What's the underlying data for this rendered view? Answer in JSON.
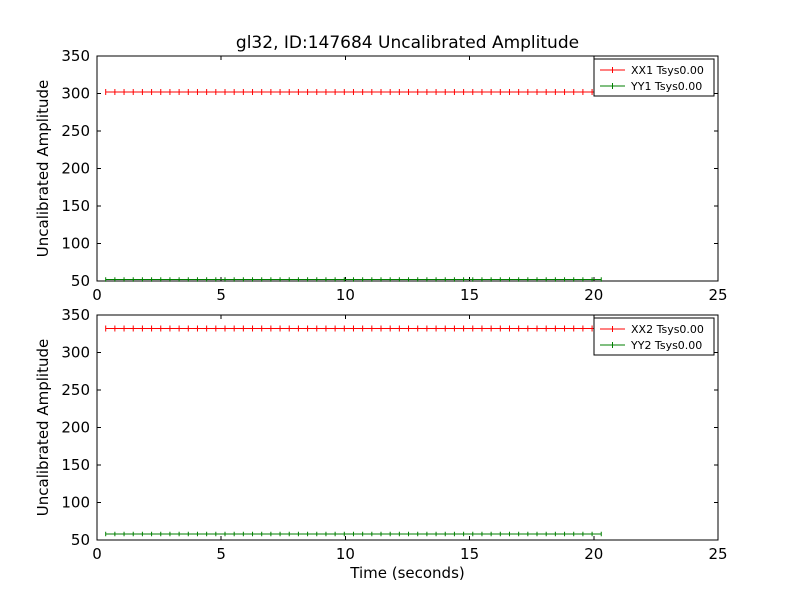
{
  "figure": {
    "background": "#ffffff",
    "title": "gl32, ID:147684 Uncalibrated Amplitude"
  },
  "chart_data": [
    {
      "type": "line",
      "subplot": "top",
      "xlabel": "",
      "ylabel": "Uncalibrated Amplitude",
      "xlim": [
        0,
        25
      ],
      "ylim": [
        50,
        350
      ],
      "xticks": [
        0,
        5,
        10,
        15,
        20,
        25
      ],
      "yticks": [
        50,
        100,
        150,
        200,
        250,
        300,
        350
      ],
      "grid": false,
      "legend_position": "upper right",
      "series": [
        {
          "name": "XX1 Tsys0.00",
          "color": "#ff0000",
          "style": "errorbar",
          "x_start": 0.35,
          "x_end": 20.3,
          "points": 55,
          "y_constant": 302,
          "y_error": 4
        },
        {
          "name": "YY1 Tsys0.00",
          "color": "#007f00",
          "style": "errorbar",
          "x_start": 0.35,
          "x_end": 20.3,
          "points": 55,
          "y_constant": 52,
          "y_error": 3
        }
      ]
    },
    {
      "type": "line",
      "subplot": "bottom",
      "xlabel": "Time (seconds)",
      "ylabel": "Uncalibrated Amplitude",
      "xlim": [
        0,
        25
      ],
      "ylim": [
        50,
        350
      ],
      "xticks": [
        0,
        5,
        10,
        15,
        20,
        25
      ],
      "yticks": [
        50,
        100,
        150,
        200,
        250,
        300,
        350
      ],
      "grid": false,
      "legend_position": "upper right",
      "series": [
        {
          "name": "XX2 Tsys0.00",
          "color": "#ff0000",
          "style": "errorbar",
          "x_start": 0.35,
          "x_end": 20.3,
          "points": 55,
          "y_constant": 332,
          "y_error": 4
        },
        {
          "name": "YY2 Tsys0.00",
          "color": "#007f00",
          "style": "errorbar",
          "x_start": 0.35,
          "x_end": 20.3,
          "points": 55,
          "y_constant": 58,
          "y_error": 3
        }
      ]
    }
  ]
}
